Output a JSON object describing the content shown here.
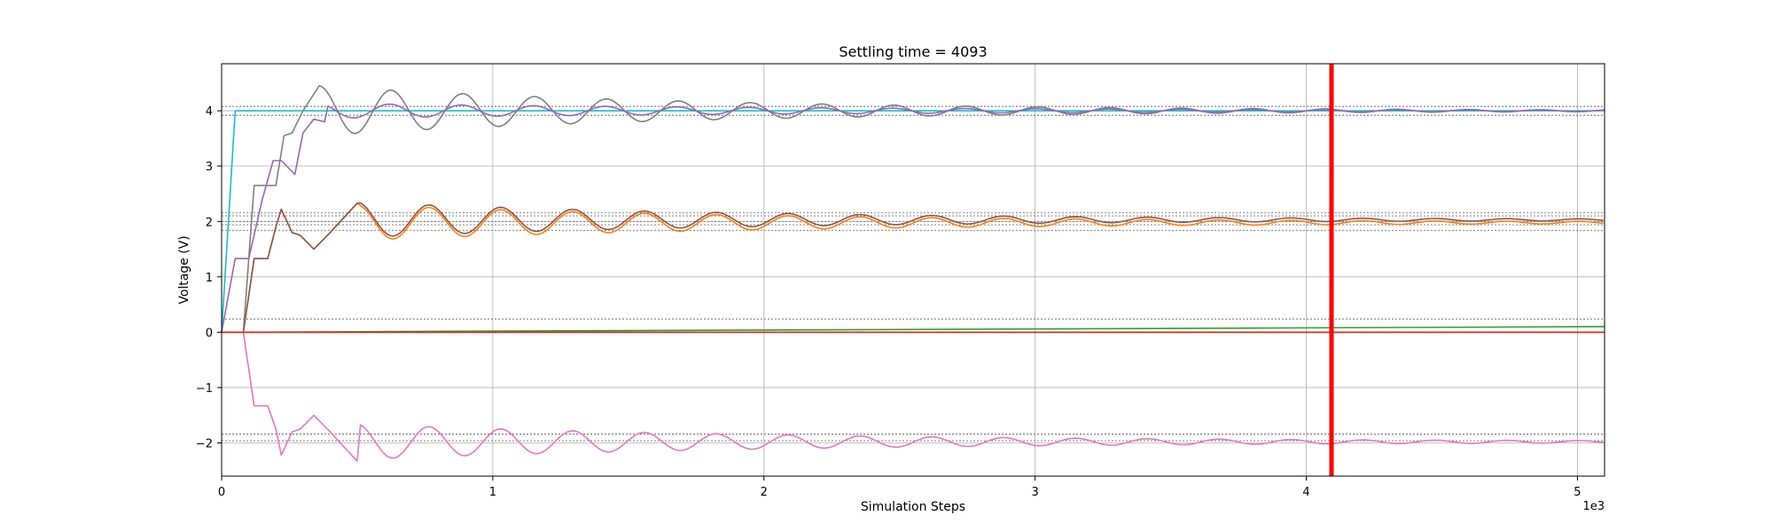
{
  "chart_data": {
    "type": "line",
    "title": "Settling time = 4093",
    "xlabel": "Simulation Steps",
    "ylabel": "Voltage (V)",
    "x_multiplier_label": "1e3",
    "xlim": [
      0,
      5.1
    ],
    "ylim": [
      -2.6,
      4.85
    ],
    "xticks": [
      0,
      1,
      2,
      3,
      4,
      5
    ],
    "xtick_labels": [
      "0",
      "1",
      "2",
      "3",
      "4",
      "5"
    ],
    "yticks": [
      -2,
      -1,
      0,
      1,
      2,
      3,
      4
    ],
    "ytick_labels": [
      "−2",
      "−1",
      "0",
      "1",
      "2",
      "3",
      "4"
    ],
    "grid": true,
    "settling_marker": {
      "x": 4.093,
      "color": "#ff0000"
    },
    "reference_lines": [
      4.08,
      3.92,
      2.16,
      2.1,
      2.0,
      1.94,
      1.84,
      0.24,
      -1.84,
      -1.96
    ],
    "series": [
      {
        "color": "#17becf",
        "kind": "step",
        "points": [
          [
            0,
            0
          ],
          [
            0.05,
            4.0
          ],
          [
            5.1,
            4.0
          ]
        ]
      },
      {
        "color": "#7f7f7f",
        "kind": "osc",
        "start": 0.08,
        "rise": [
          [
            0.08,
            0
          ],
          [
            0.12,
            2.65
          ],
          [
            0.16,
            2.65
          ],
          [
            0.2,
            2.65
          ],
          [
            0.23,
            3.55
          ],
          [
            0.26,
            3.6
          ],
          [
            0.3,
            4.0
          ],
          [
            0.36,
            4.45
          ]
        ],
        "base": 4.0,
        "amp": 0.45,
        "period": 0.265,
        "decay": 0.7,
        "phase_x": 0.36,
        "end": 5.1
      },
      {
        "color": "#9467bd",
        "kind": "osc",
        "start": 0.0,
        "rise": [
          [
            0,
            0
          ],
          [
            0.05,
            1.33
          ],
          [
            0.1,
            1.33
          ],
          [
            0.15,
            2.4
          ],
          [
            0.19,
            3.1
          ],
          [
            0.22,
            3.1
          ],
          [
            0.27,
            2.85
          ],
          [
            0.3,
            3.6
          ],
          [
            0.34,
            3.85
          ],
          [
            0.38,
            3.8
          ]
        ],
        "base": 4.0,
        "amp": 0.12,
        "period": 0.265,
        "decay": 0.5,
        "phase_x": 0.62,
        "end": 5.1
      },
      {
        "color": "#ff7f0e",
        "kind": "osc",
        "start": 0.08,
        "rise": [
          [
            0.08,
            0
          ],
          [
            0.12,
            1.33
          ],
          [
            0.17,
            1.33
          ],
          [
            0.2,
            1.9
          ],
          [
            0.22,
            2.22
          ],
          [
            0.26,
            1.8
          ],
          [
            0.29,
            1.75
          ],
          [
            0.34,
            1.5
          ],
          [
            0.4,
            1.8
          ],
          [
            0.5,
            2.33
          ]
        ],
        "base": 1.98,
        "amp": 0.32,
        "period": 0.265,
        "decay": 0.6,
        "phase_x": 0.5,
        "end": 5.1
      },
      {
        "color": "#8c564b",
        "kind": "osc",
        "start": 0.08,
        "rise": [
          [
            0.08,
            0
          ],
          [
            0.12,
            1.33
          ],
          [
            0.17,
            1.33
          ],
          [
            0.2,
            1.9
          ],
          [
            0.22,
            2.22
          ],
          [
            0.26,
            1.8
          ],
          [
            0.29,
            1.75
          ],
          [
            0.34,
            1.5
          ],
          [
            0.4,
            1.8
          ],
          [
            0.5,
            2.33
          ]
        ],
        "base": 2.03,
        "amp": 0.32,
        "period": 0.265,
        "decay": 0.65,
        "phase_x": 0.5,
        "end": 5.1
      },
      {
        "color": "#e377c2",
        "kind": "osc",
        "start": 0.08,
        "rise": [
          [
            0.08,
            0
          ],
          [
            0.12,
            -1.33
          ],
          [
            0.17,
            -1.33
          ],
          [
            0.2,
            -1.75
          ],
          [
            0.22,
            -2.22
          ],
          [
            0.26,
            -1.8
          ],
          [
            0.29,
            -1.75
          ],
          [
            0.34,
            -1.5
          ],
          [
            0.4,
            -1.8
          ],
          [
            0.5,
            -2.33
          ]
        ],
        "base": -1.98,
        "amp": 0.32,
        "period": 0.265,
        "decay": 0.6,
        "phase_x": 0.5,
        "end": 5.1
      },
      {
        "color": "#2ca02c",
        "kind": "line",
        "points": [
          [
            0,
            0
          ],
          [
            5.1,
            0.1
          ]
        ]
      },
      {
        "color": "#bcbd22",
        "kind": "line",
        "points": [
          [
            0,
            0
          ],
          [
            5.1,
            0.0
          ]
        ]
      },
      {
        "color": "#d62728",
        "kind": "line",
        "points": [
          [
            0,
            0
          ],
          [
            5.1,
            0.0
          ]
        ]
      }
    ]
  }
}
